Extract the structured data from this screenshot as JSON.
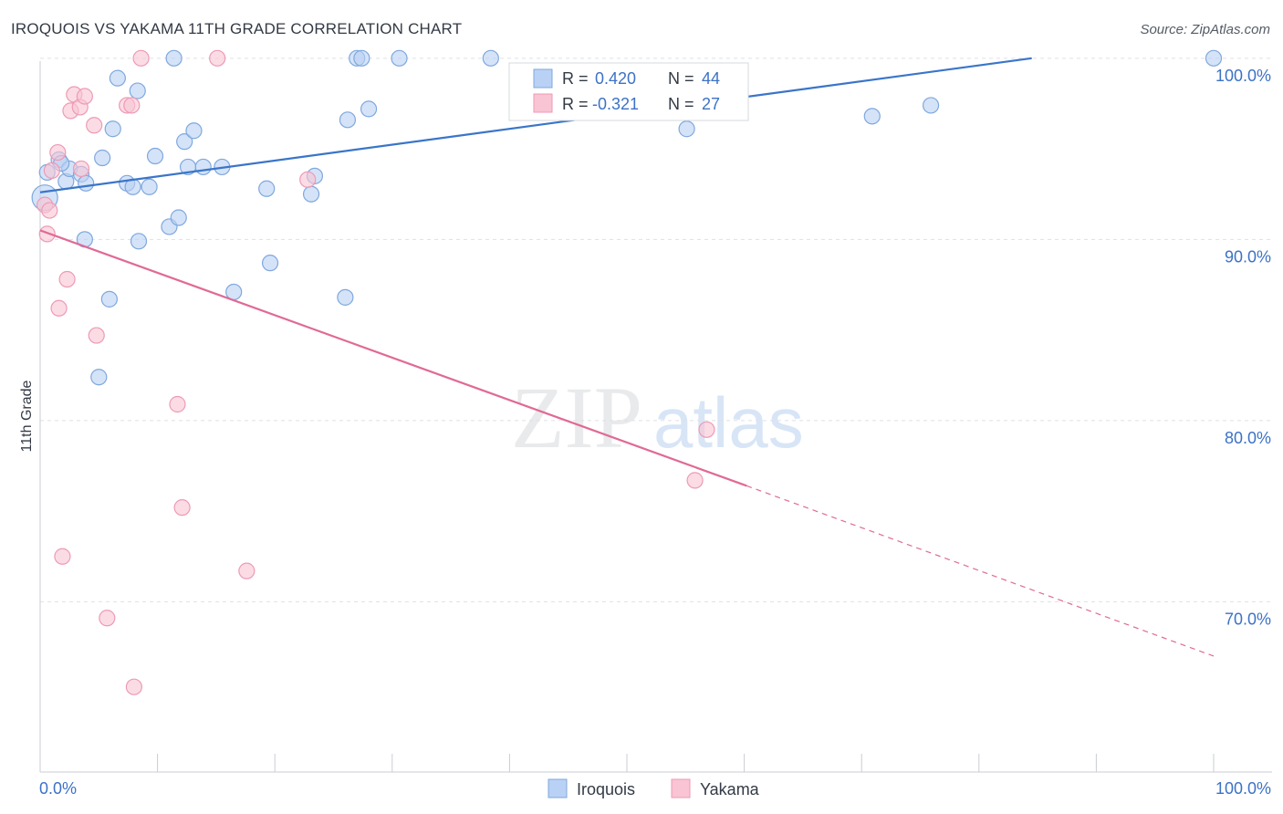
{
  "header": {
    "title": "IROQUOIS VS YAKAMA 11TH GRADE CORRELATION CHART",
    "source": "Source: ZipAtlas.com"
  },
  "watermark": {
    "zip": "ZIP",
    "atlas": "atlas"
  },
  "legend_box": {
    "rows": [
      {
        "r_label": "R = ",
        "r_value": "0.420",
        "n_label": "N = ",
        "n_value": "44"
      },
      {
        "r_label": "R = ",
        "r_value": "-0.321",
        "n_label": "N = ",
        "n_value": "27"
      }
    ]
  },
  "colors": {
    "iroquois_fill": "#b9d1f4",
    "iroquois_stroke": "#7fa8de",
    "iroquois_line": "#3a75c9",
    "yakama_fill": "#f9c4d4",
    "yakama_stroke": "#ee9ab5",
    "yakama_line": "#e06a95",
    "axis_text": "#3c72c6",
    "grid": "#dde1e6"
  },
  "chart_data": {
    "type": "scatter",
    "title": "IROQUOIS VS YAKAMA 11TH GRADE CORRELATION CHART",
    "xlabel": "",
    "ylabel": "11th Grade",
    "xlim": [
      0,
      100
    ],
    "ylim": [
      60.6,
      101.2
    ],
    "x_tick_labels": [
      "0.0%",
      "100.0%"
    ],
    "y_ticks": [
      70,
      80,
      90,
      100
    ],
    "y_tick_labels": [
      "70.0%",
      "80.0%",
      "90.0%",
      "100.0%"
    ],
    "legend": [
      "Iroquois",
      "Yakama"
    ],
    "series": [
      {
        "name": "Iroquois",
        "r": 0.42,
        "n": 44,
        "trend": {
          "x": [
            0,
            84.5
          ],
          "y": [
            92.6,
            100.0
          ],
          "extend_to": null
        },
        "points": [
          [
            0.4,
            92.3
          ],
          [
            0.6,
            93.7
          ],
          [
            1.6,
            94.4
          ],
          [
            2.2,
            93.2
          ],
          [
            2.5,
            93.9
          ],
          [
            3.5,
            93.6
          ],
          [
            3.9,
            93.1
          ],
          [
            5.3,
            94.5
          ],
          [
            3.8,
            90.0
          ],
          [
            6.2,
            96.1
          ],
          [
            6.6,
            98.9
          ],
          [
            7.4,
            93.1
          ],
          [
            7.9,
            92.9
          ],
          [
            8.3,
            98.2
          ],
          [
            8.4,
            89.9
          ],
          [
            9.3,
            92.9
          ],
          [
            9.8,
            94.6
          ],
          [
            11.0,
            90.7
          ],
          [
            11.4,
            100.0
          ],
          [
            11.8,
            91.2
          ],
          [
            12.3,
            95.4
          ],
          [
            12.6,
            94.0
          ],
          [
            13.1,
            96.0
          ],
          [
            13.9,
            94.0
          ],
          [
            15.5,
            94.0
          ],
          [
            16.5,
            87.1
          ],
          [
            19.3,
            92.8
          ],
          [
            19.6,
            88.7
          ],
          [
            23.4,
            93.5
          ],
          [
            23.1,
            92.5
          ],
          [
            26.0,
            86.8
          ],
          [
            26.2,
            96.6
          ],
          [
            27.0,
            100.0
          ],
          [
            27.4,
            100.0
          ],
          [
            28.0,
            97.2
          ],
          [
            30.6,
            100.0
          ],
          [
            38.4,
            100.0
          ],
          [
            55.1,
            96.1
          ],
          [
            70.9,
            96.8
          ],
          [
            75.9,
            97.4
          ],
          [
            100.0,
            100.0
          ],
          [
            5.9,
            86.7
          ],
          [
            5.0,
            82.4
          ],
          [
            1.8,
            94.2
          ]
        ]
      },
      {
        "name": "Yakama",
        "r": -0.321,
        "n": 27,
        "trend": {
          "x": [
            0,
            60.2
          ],
          "y": [
            90.5,
            76.4
          ],
          "extend_to": [
            100,
            67.0
          ]
        },
        "points": [
          [
            0.4,
            91.9
          ],
          [
            0.6,
            90.3
          ],
          [
            0.8,
            91.6
          ],
          [
            1.0,
            93.8
          ],
          [
            1.5,
            94.8
          ],
          [
            2.3,
            87.8
          ],
          [
            1.6,
            86.2
          ],
          [
            2.6,
            97.1
          ],
          [
            2.9,
            98.0
          ],
          [
            3.4,
            97.3
          ],
          [
            3.5,
            93.9
          ],
          [
            3.8,
            97.9
          ],
          [
            4.6,
            96.3
          ],
          [
            4.8,
            84.7
          ],
          [
            7.4,
            97.4
          ],
          [
            7.8,
            97.4
          ],
          [
            8.6,
            100.0
          ],
          [
            11.7,
            80.9
          ],
          [
            12.1,
            75.2
          ],
          [
            15.1,
            100.0
          ],
          [
            17.6,
            71.7
          ],
          [
            22.8,
            93.3
          ],
          [
            1.9,
            72.5
          ],
          [
            5.7,
            69.1
          ],
          [
            8.0,
            65.3
          ],
          [
            55.8,
            76.7
          ],
          [
            56.8,
            79.5
          ]
        ]
      }
    ]
  }
}
